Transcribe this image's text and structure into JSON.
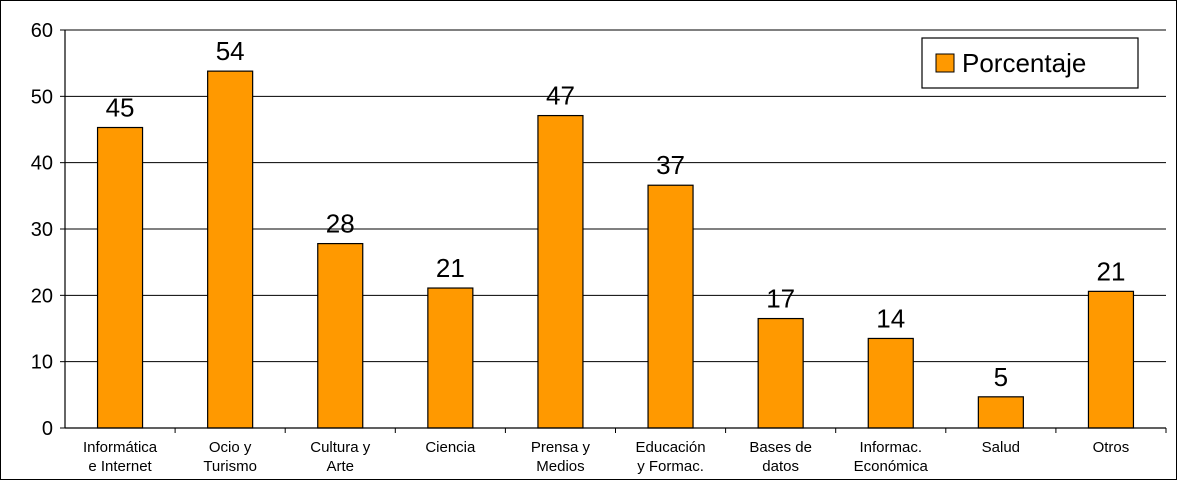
{
  "chart_data": {
    "type": "bar",
    "categories": [
      [
        "Informática",
        "e Internet"
      ],
      [
        "Ocio y",
        "Turismo"
      ],
      [
        "Cultura y",
        "Arte"
      ],
      [
        "Ciencia"
      ],
      [
        "Prensa y",
        "Medios"
      ],
      [
        "Educación",
        "y Formac."
      ],
      [
        "Bases de",
        "datos"
      ],
      [
        "Informac.",
        "Económica"
      ],
      [
        "Salud"
      ],
      [
        "Otros"
      ]
    ],
    "series": [
      {
        "name": "Porcentaje",
        "values": [
          45.3,
          53.8,
          27.8,
          21.1,
          47.1,
          36.6,
          16.5,
          13.5,
          4.7,
          20.6
        ],
        "labels": [
          "45",
          "54",
          "28",
          "21",
          "47",
          "37",
          "17",
          "14",
          "5",
          "21"
        ]
      }
    ],
    "ylim": [
      0,
      60
    ],
    "yticks": [
      0,
      10,
      20,
      30,
      40,
      50,
      60
    ],
    "grid": true,
    "legend_position": "top-right",
    "colors": {
      "bar": "#FF9900",
      "bar_stroke": "#000000",
      "grid": "#000000"
    }
  }
}
